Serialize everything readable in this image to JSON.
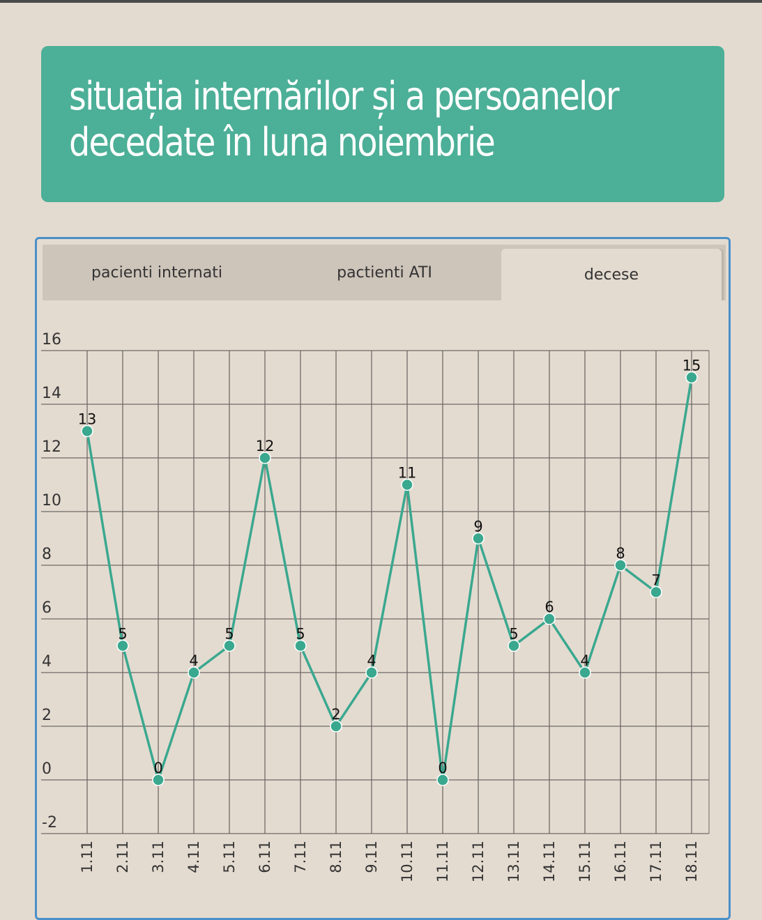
{
  "title": "situația internărilor și a persoanelor decedate în luna noiembrie",
  "tabs": [
    {
      "label": "pacienti internati",
      "active": false
    },
    {
      "label": "pactienti ATI",
      "active": false
    },
    {
      "label": "decese",
      "active": true
    }
  ],
  "colors": {
    "accent": "#4caf97",
    "line": "#3aa88f",
    "background": "#e4dbd0",
    "panel_border": "#4a90c9",
    "grid": "#6e6a66"
  },
  "chart_data": {
    "type": "line",
    "title": "",
    "xlabel": "",
    "ylabel": "",
    "categories": [
      "1.11",
      "2.11",
      "3.11",
      "4.11",
      "5.11",
      "6.11",
      "7.11",
      "8.11",
      "9.11",
      "10.11",
      "11.11",
      "12.11",
      "13.11",
      "14.11",
      "15.11",
      "16.11",
      "17.11",
      "18.11"
    ],
    "series": [
      {
        "values": [
          13,
          5,
          0,
          4,
          5,
          12,
          5,
          2,
          4,
          11,
          0,
          9,
          5,
          6,
          4,
          8,
          7,
          15
        ]
      }
    ],
    "ylim": [
      -2,
      16
    ],
    "yticks": [
      -2,
      0,
      2,
      4,
      6,
      8,
      10,
      12,
      14,
      16
    ],
    "grid": true,
    "data_labels": true
  }
}
